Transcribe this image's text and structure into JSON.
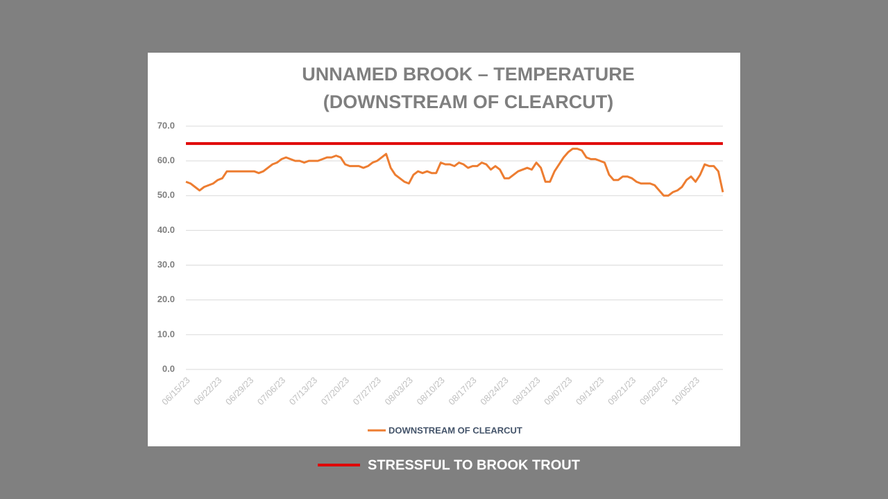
{
  "chart_data": {
    "type": "line",
    "title": [
      "UNNAMED BROOK – TEMPERATURE",
      "(DOWNSTREAM OF CLEARCUT)"
    ],
    "categories": [
      "06/15/23",
      null,
      null,
      null,
      null,
      null,
      null,
      "06/22/23",
      null,
      null,
      null,
      null,
      null,
      null,
      "06/29/23",
      null,
      null,
      null,
      null,
      null,
      null,
      "07/06/23",
      null,
      null,
      null,
      null,
      null,
      null,
      "07/13/23",
      null,
      null,
      null,
      null,
      null,
      null,
      "07/20/23",
      null,
      null,
      null,
      null,
      null,
      null,
      "07/27/23",
      null,
      null,
      null,
      null,
      null,
      null,
      "08/03/23",
      null,
      null,
      null,
      null,
      null,
      null,
      "08/10/23",
      null,
      null,
      null,
      null,
      null,
      null,
      "08/17/23",
      null,
      null,
      null,
      null,
      null,
      null,
      "08/24/23",
      null,
      null,
      null,
      null,
      null,
      null,
      "08/31/23",
      null,
      null,
      null,
      null,
      null,
      null,
      "09/07/23",
      null,
      null,
      null,
      null,
      null,
      null,
      "09/14/23",
      null,
      null,
      null,
      null,
      null,
      null,
      "09/21/23",
      null,
      null,
      null,
      null,
      null,
      null,
      "09/28/23",
      null,
      null,
      null,
      null,
      null,
      null,
      "10/05/23",
      null,
      null,
      null,
      null,
      null,
      null
    ],
    "series": [
      {
        "name": "DOWNSTREAM OF CLEARCUT",
        "color": "#ed7d31",
        "values": [
          54,
          53.5,
          52.5,
          51.5,
          52.5,
          53,
          53.5,
          54.5,
          55,
          57,
          57,
          57,
          57,
          57,
          57,
          57,
          56.5,
          57,
          58,
          59,
          59.5,
          60.5,
          61,
          60.5,
          60,
          60,
          59.5,
          60,
          60,
          60,
          60.5,
          61,
          61,
          61.5,
          61,
          59,
          58.5,
          58.5,
          58.5,
          58,
          58.5,
          59.5,
          60,
          61,
          62,
          58,
          56,
          55,
          54,
          53.5,
          56,
          57,
          56.5,
          57,
          56.5,
          56.5,
          59.5,
          59,
          59,
          58.5,
          59.5,
          59,
          58,
          58.5,
          58.5,
          59.5,
          59,
          57.5,
          58.5,
          57.5,
          55,
          55,
          56,
          57,
          57.5,
          58,
          57.5,
          59.5,
          58,
          54,
          54,
          57,
          59,
          61,
          62.5,
          63.5,
          63.5,
          63,
          61,
          60.5,
          60.5,
          60,
          59.5,
          56,
          54.5,
          54.5,
          55.5,
          55.5,
          55,
          54,
          53.5,
          53.5,
          53.5,
          53,
          51.5,
          50,
          50,
          51,
          51.5,
          52.5,
          54.5,
          55.5,
          54,
          56,
          59,
          58.5,
          58.5,
          57,
          51
        ]
      }
    ],
    "threshold": {
      "value": 65,
      "label": "STRESSFUL TO BROOK TROUT",
      "color": "#e00000"
    },
    "ylim": [
      0,
      70
    ],
    "yticks": [
      {
        "value": 0,
        "label": "0.0"
      },
      {
        "value": 10,
        "label": "10.0"
      },
      {
        "value": 20,
        "label": "20.0"
      },
      {
        "value": 30,
        "label": "30.0"
      },
      {
        "value": 40,
        "label": "40.0"
      },
      {
        "value": 50,
        "label": "50.0"
      },
      {
        "value": 60,
        "label": "60.0"
      },
      {
        "value": 70,
        "label": "70.0"
      }
    ],
    "grid": true
  }
}
